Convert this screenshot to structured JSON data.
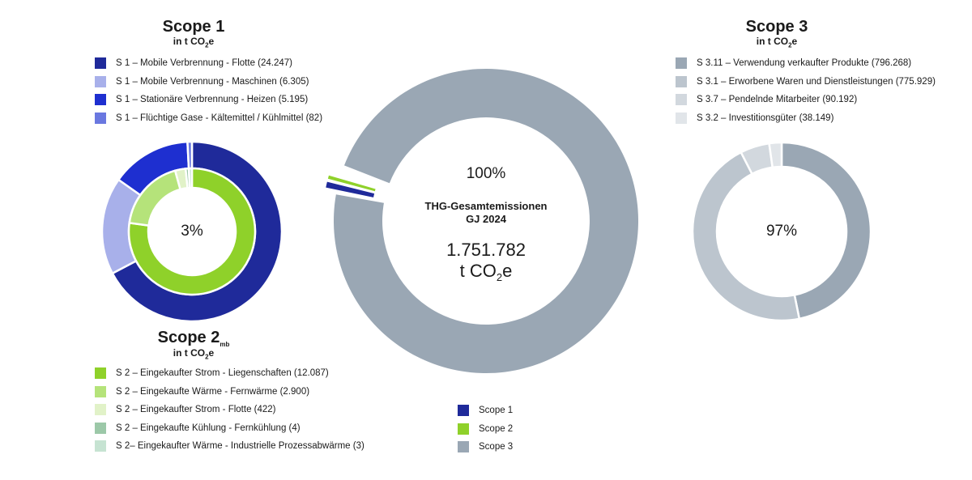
{
  "scope1": {
    "title": "Scope 1",
    "unit_prefix": "in t CO",
    "unit_sub": "2",
    "unit_suffix": "e",
    "center_label": "3%",
    "items": [
      {
        "label": "S 1 – Mobile Verbrennung - Flotte (24.247)",
        "value": 24247,
        "color": "#1f2a9a"
      },
      {
        "label": "S 1 – Mobile Verbrennung - Maschinen (6.305)",
        "value": 6305,
        "color": "#a8b0ea"
      },
      {
        "label": "S 1 – Stationäre Verbrennung - Heizen (5.195)",
        "value": 5195,
        "color": "#1e2fd0"
      },
      {
        "label": "S 1 – Flüchtige Gase - Kältemittel / Kühlmittel (82)",
        "value": 82,
        "color": "#6a78e0"
      }
    ]
  },
  "scope2": {
    "title": "Scope 2",
    "title_sub": "mb",
    "unit_prefix": "in t CO",
    "unit_sub": "2",
    "unit_suffix": "e",
    "items": [
      {
        "label": "S 2 – Eingekaufter Strom - Liegenschaften (12.087)",
        "value": 12087,
        "color": "#8fd12a"
      },
      {
        "label": "S 2 – Eingekaufte Wärme - Fernwärme (2.900)",
        "value": 2900,
        "color": "#b5e37a"
      },
      {
        "label": "S 2 – Eingekaufter Strom - Flotte (422)",
        "value": 422,
        "color": "#e1f2c8"
      },
      {
        "label": "S 2 – Eingekaufte Kühlung - Fernkühlung (4)",
        "value": 4,
        "color": "#9cc8a8"
      },
      {
        "label": "S 2– Eingekaufter Wärme - Industrielle Prozessabwärme (3)",
        "value": 3,
        "color": "#c6e3d2"
      }
    ]
  },
  "scope3": {
    "title": "Scope 3",
    "unit_prefix": "in t CO",
    "unit_sub": "2",
    "unit_suffix": "e",
    "center_label": "97%",
    "items": [
      {
        "label": "S 3.11 – Verwendung verkaufter Produkte (796.268)",
        "value": 796268,
        "color": "#9aa7b4"
      },
      {
        "label": "S 3.1 – Erworbene Waren und Dienstleistungen (775.929)",
        "value": 775929,
        "color": "#bcc5ce"
      },
      {
        "label": "S 3.7 – Pendelnde Mitarbeiter (90.192)",
        "value": 90192,
        "color": "#d2d8de"
      },
      {
        "label": "S 3.2 – Investitionsgüter (38.149)",
        "value": 38149,
        "color": "#e1e5e9"
      }
    ]
  },
  "total": {
    "percent": "100%",
    "line1": "THG-Gesamtemissionen",
    "line2": "GJ 2024",
    "value": "1.751.782",
    "unit_prefix": "t CO",
    "unit_sub": "2",
    "unit_suffix": "e"
  },
  "chart_data": {
    "type": "pie",
    "title": "THG-Gesamtemissionen GJ 2024",
    "total": 1751782,
    "series": [
      {
        "name": "Scope 1",
        "value": 35829,
        "color": "#1f2a9a"
      },
      {
        "name": "Scope 2",
        "value": 15416,
        "color": "#8fd12a"
      },
      {
        "name": "Scope 3",
        "value": 1700538,
        "color": "#9aa7b4"
      }
    ]
  },
  "main_legend": [
    {
      "label": "Scope 1",
      "color": "#1f2a9a"
    },
    {
      "label": "Scope 2",
      "color": "#8fd12a"
    },
    {
      "label": "Scope 3",
      "color": "#9aa7b4"
    }
  ]
}
